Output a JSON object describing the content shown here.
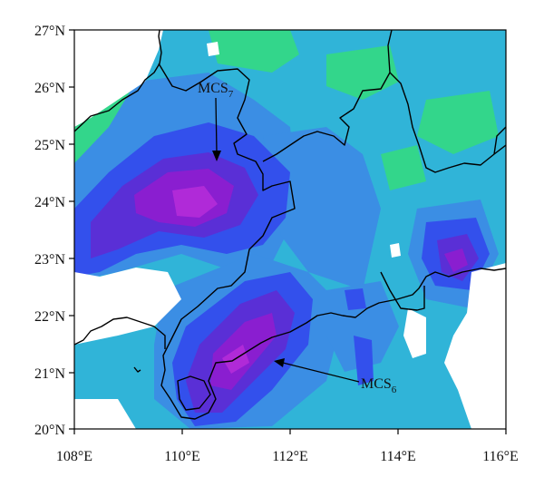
{
  "map": {
    "y_ticks": [
      "27°N",
      "26°N",
      "25°N",
      "24°N",
      "23°N",
      "22°N",
      "21°N",
      "20°N"
    ],
    "x_ticks": [
      "108°E",
      "110°E",
      "112°E",
      "114°E",
      "116°E"
    ],
    "annotations": [
      {
        "base": "MCS",
        "sub": "7"
      },
      {
        "base": "MCS",
        "sub": "6"
      }
    ],
    "colors": {
      "white": "#ffffff",
      "green": "#33d68b",
      "cyan": "#30b4d8",
      "light_blue": "#3b8ee4",
      "blue": "#3350ec",
      "indigo": "#5a2fd6",
      "purple": "#8a1ed0",
      "magenta": "#b02ad8"
    }
  }
}
